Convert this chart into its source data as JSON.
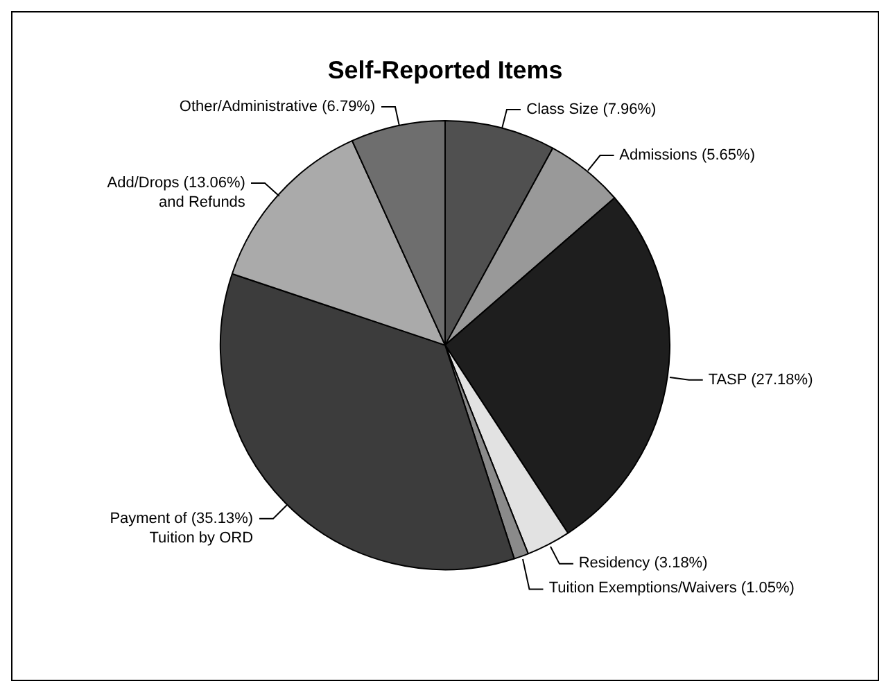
{
  "chart_data": {
    "type": "pie",
    "title": "Self-Reported Items",
    "categories": [
      "Class Size",
      "Admissions",
      "TASP",
      "Residency",
      "Tuition Exemptions/Waivers",
      "Payment of\nTuition by ORD",
      "Add/Drops\nand Refunds",
      "Other/Administrative"
    ],
    "values": [
      7.96,
      5.65,
      27.18,
      3.18,
      1.05,
      35.13,
      13.06,
      6.79
    ],
    "value_labels": [
      "(7.96%)",
      "(5.65%)",
      "(27.18%)",
      "(3.18%)",
      "(1.05%)",
      "(35.13%)",
      "(13.06%)",
      "(6.79%)"
    ],
    "colors": [
      "#505050",
      "#999999",
      "#1e1e1e",
      "#e2e2e2",
      "#8a8a8a",
      "#3c3c3c",
      "#aaaaaa",
      "#6e6e6e"
    ],
    "legend": false
  }
}
